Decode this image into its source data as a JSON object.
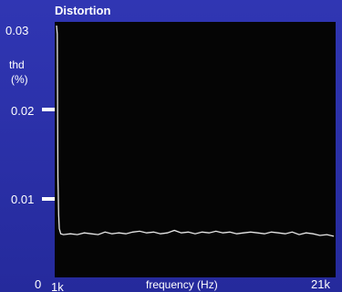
{
  "chart_data": {
    "type": "line",
    "title": "Distortion",
    "ylabel": "thd",
    "ylabel_unit": "(%)",
    "xlabel": "frequency (Hz)",
    "x_tick_labels": [
      "1k",
      "21k"
    ],
    "y_tick_labels": [
      "0",
      "0.01",
      "0.02",
      "0.03"
    ],
    "xlim": [
      1000,
      21000
    ],
    "ylim": [
      0,
      0.03
    ],
    "grid": false,
    "series": [
      {
        "color": "#e8e8e8",
        "x": [
          1000,
          1050,
          1100,
          1150,
          1200,
          1300,
          1500,
          2000,
          2500,
          3000,
          3500,
          4000,
          4500,
          5000,
          5500,
          6000,
          6500,
          7000,
          7500,
          8000,
          8500,
          9000,
          9500,
          10000,
          10500,
          11000,
          11500,
          12000,
          12500,
          13000,
          13500,
          14000,
          14500,
          15000,
          15500,
          16000,
          16500,
          17000,
          17500,
          18000,
          18500,
          19000,
          19500,
          20000,
          20500,
          21000
        ],
        "y": [
          0.03,
          0.029,
          0.012,
          0.0075,
          0.0058,
          0.0052,
          0.0051,
          0.0052,
          0.0051,
          0.0053,
          0.0052,
          0.0051,
          0.0054,
          0.0052,
          0.0053,
          0.0052,
          0.0054,
          0.0055,
          0.0053,
          0.0054,
          0.0052,
          0.0053,
          0.0056,
          0.0053,
          0.0054,
          0.0052,
          0.0054,
          0.0053,
          0.0055,
          0.0053,
          0.0054,
          0.0052,
          0.0053,
          0.0054,
          0.0053,
          0.0052,
          0.0054,
          0.0053,
          0.0052,
          0.0054,
          0.0051,
          0.0053,
          0.0052,
          0.005,
          0.0051,
          0.0049
        ]
      }
    ]
  }
}
